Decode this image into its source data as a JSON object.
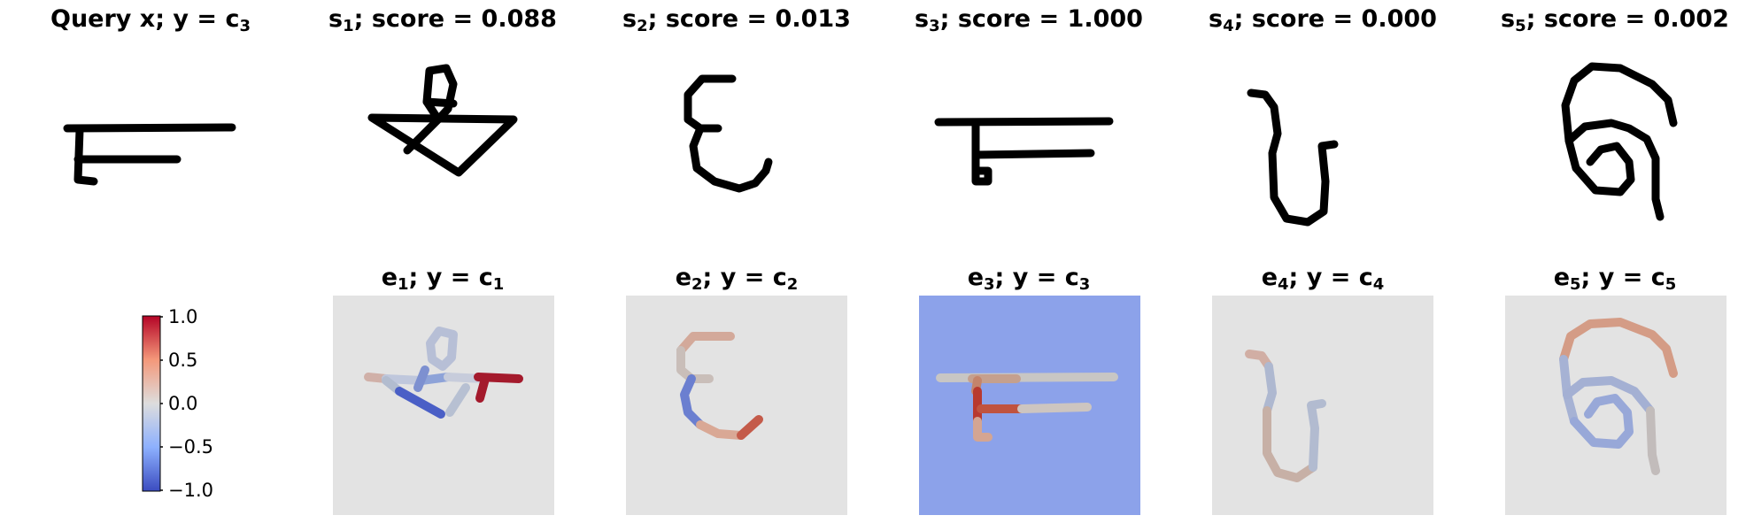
{
  "top_row": [
    {
      "pre": "Query x; y = c",
      "sub": "3",
      "post": ""
    },
    {
      "pre": "s",
      "sub": "1",
      "post": "; score = 0.088"
    },
    {
      "pre": "s",
      "sub": "2",
      "post": "; score = 0.013"
    },
    {
      "pre": "s",
      "sub": "3",
      "post": "; score = 1.000"
    },
    {
      "pre": "s",
      "sub": "4",
      "post": "; score = 0.000"
    },
    {
      "pre": "s",
      "sub": "5",
      "post": "; score = 0.002"
    }
  ],
  "bottom_row": [
    {
      "pre": "e",
      "sub": "1",
      "mid": "; y = c",
      "sub2": "1"
    },
    {
      "pre": "e",
      "sub": "2",
      "mid": "; y = c",
      "sub2": "2"
    },
    {
      "pre": "e",
      "sub": "3",
      "mid": "; y = c",
      "sub2": "3"
    },
    {
      "pre": "e",
      "sub": "4",
      "mid": "; y = c",
      "sub2": "4"
    },
    {
      "pre": "e",
      "sub": "5",
      "mid": "; y = c",
      "sub2": "5"
    }
  ],
  "colorbar": {
    "ticks": [
      "1.0",
      "0.5",
      "0.0",
      "−0.5",
      "−1.0"
    ],
    "min": -1.0,
    "max": 1.0,
    "colors": [
      "#3b4cc0",
      "#8db0fe",
      "#dddddd",
      "#f4987a",
      "#b40426"
    ]
  },
  "colors": {
    "neutral_bg": "#e3e3e3",
    "highlight_bg": "#8ca2ea",
    "stroke": "#000000"
  }
}
